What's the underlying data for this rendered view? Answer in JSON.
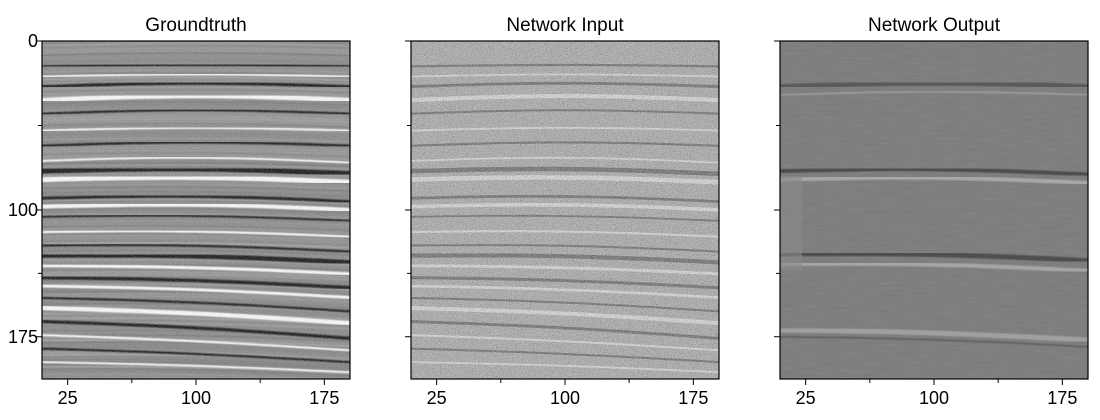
{
  "panels": [
    {
      "title": "Groundtruth",
      "style": "groundtruth",
      "show_y_labels": true,
      "x_ticks": [
        "25",
        "100",
        "175"
      ],
      "y_ticks": [
        "0",
        "100",
        "175"
      ]
    },
    {
      "title": "Network Input",
      "style": "noisy",
      "show_y_labels": false,
      "x_ticks": [
        "25",
        "100",
        "175"
      ],
      "y_ticks": [
        "0",
        "100",
        "175"
      ]
    },
    {
      "title": "Network Output",
      "style": "denoised",
      "show_y_labels": false,
      "x_ticks": [
        "25",
        "100",
        "175"
      ],
      "y_ticks": [
        "0",
        "100",
        "175"
      ]
    }
  ],
  "axes": {
    "x_range": [
      10,
      190
    ],
    "y_range": [
      0,
      200
    ],
    "x_tick_values": [
      25,
      100,
      175
    ],
    "x_minor_tick_values": [
      62.5,
      137.5
    ],
    "y_tick_values": [
      0,
      100,
      175
    ],
    "y_minor_tick_values": [
      50,
      137.5
    ]
  },
  "colormap": "gray"
}
